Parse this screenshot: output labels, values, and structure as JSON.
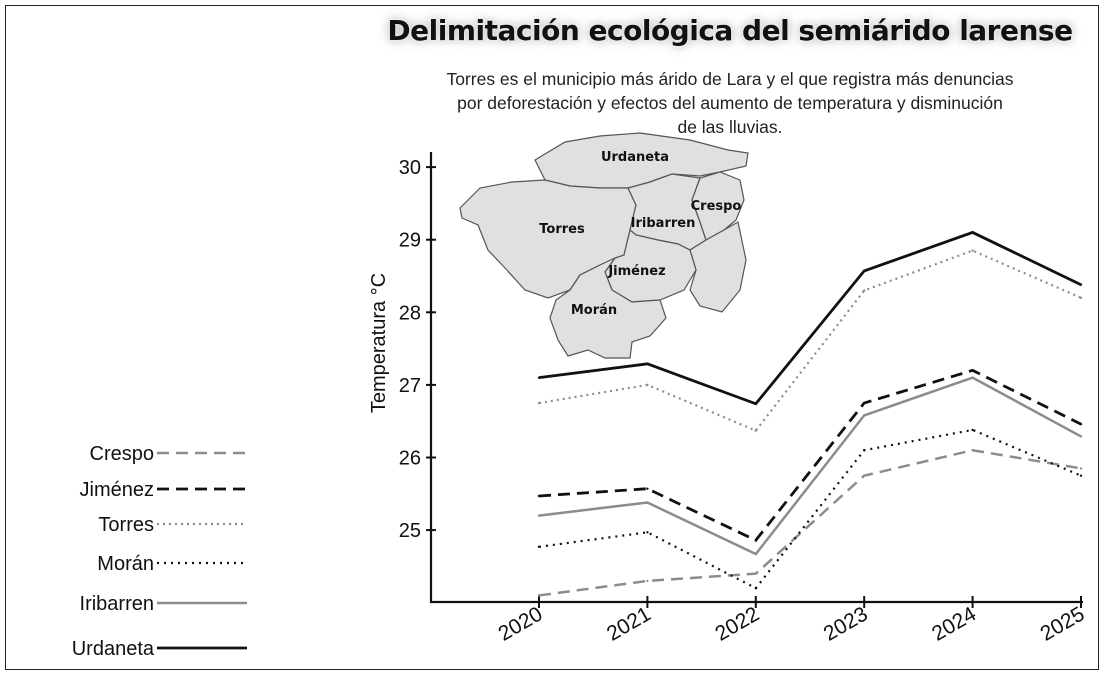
{
  "header": {
    "title": "Delimitación ecológica del semiárido larense",
    "subtitle_lines": [
      "Torres es el municipio más árido de Lara y el que registra más denuncias",
      "por deforestación y efectos del aumento de temperatura y disminución",
      "de las lluvias."
    ]
  },
  "map": {
    "labels": [
      "Urdaneta",
      "Torres",
      "Iribarren",
      "Crespo",
      "Jiménez",
      "Morán"
    ],
    "fill_color": "#e0e0e0",
    "stroke_color": "#555555"
  },
  "chart_data": {
    "type": "line",
    "title": "Delimitación ecológica del semiárido larense",
    "xlabel": "",
    "ylabel": "Temperatura °C",
    "x": [
      "2020",
      "2021",
      "2022",
      "2023",
      "2024",
      "2025"
    ],
    "ylim": [
      24,
      30.2
    ],
    "yticks": [
      "25",
      "26",
      "27",
      "28",
      "29",
      "30"
    ],
    "grid": false,
    "legend_position": "left",
    "series": [
      {
        "name": "Crespo",
        "values": [
          24.1,
          24.3,
          24.4,
          25.75,
          26.1,
          25.85
        ],
        "color": "#8c8c8c",
        "dash": "12,7",
        "width": 2.5
      },
      {
        "name": "Jiménez",
        "values": [
          25.47,
          25.57,
          24.86,
          26.75,
          27.2,
          26.46
        ],
        "color": "#111111",
        "dash": "12,7",
        "width": 2.8
      },
      {
        "name": "Torres",
        "values": [
          26.75,
          27.0,
          26.37,
          28.3,
          28.85,
          28.2
        ],
        "color": "#8c8c8c",
        "dash": "2,4",
        "width": 2.2
      },
      {
        "name": "Morán",
        "values": [
          24.77,
          24.97,
          24.2,
          26.1,
          26.38,
          25.75
        ],
        "color": "#111111",
        "dash": "2,5",
        "width": 2.2
      },
      {
        "name": "Iribarren",
        "values": [
          25.2,
          25.38,
          24.67,
          26.58,
          27.1,
          26.29
        ],
        "color": "#8c8c8c",
        "dash": "",
        "width": 2.5
      },
      {
        "name": "Urdaneta",
        "values": [
          27.1,
          27.29,
          26.74,
          28.57,
          29.1,
          28.38
        ],
        "color": "#111111",
        "dash": "",
        "width": 2.8
      }
    ]
  }
}
